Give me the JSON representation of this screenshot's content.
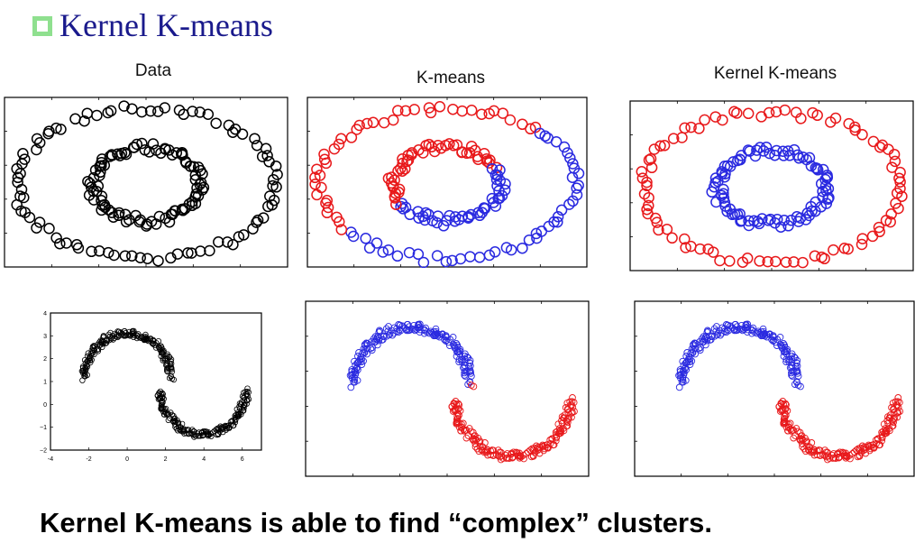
{
  "slide": {
    "title": "Kernel K-means",
    "caption": "Kernel K-means is able to find “complex” clusters."
  },
  "columns": {
    "data": "Data",
    "kmeans": "K-means",
    "kernel_kmeans": "Kernel K-means"
  },
  "colors": {
    "title_text": "#1a1a8c",
    "bullet": "#8fe08f",
    "unclustered": "#000000",
    "cluster_red": "#e8191b",
    "cluster_blue": "#2a2ae0"
  },
  "chart_data": [
    {
      "type": "scatter",
      "title": "Data",
      "dataset": "concentric-rings",
      "clusters": [
        {
          "shape": "outer ring",
          "radius": [
            1.0,
            1.0
          ],
          "color": "#000000"
        },
        {
          "shape": "inner ring",
          "radius": [
            0.42,
            0.48
          ],
          "color": "#000000"
        }
      ]
    },
    {
      "type": "scatter",
      "title": "K-means",
      "dataset": "concentric-rings",
      "clusters": [
        {
          "name": "cluster-1",
          "color": "#e8191b",
          "members": "left/upper half of both rings"
        },
        {
          "name": "cluster-2",
          "color": "#2a2ae0",
          "members": "right/lower half of both rings"
        }
      ]
    },
    {
      "type": "scatter",
      "title": "Kernel K-means",
      "dataset": "concentric-rings",
      "clusters": [
        {
          "name": "cluster-1",
          "color": "#e8191b",
          "members": "outer ring"
        },
        {
          "name": "cluster-2",
          "color": "#2a2ae0",
          "members": "inner ring"
        }
      ]
    },
    {
      "type": "scatter",
      "title": "",
      "dataset": "two-moons",
      "xlim": [
        -4,
        7
      ],
      "ylim": [
        -2,
        4
      ],
      "x_ticks": [
        "-4",
        "-2",
        "0",
        "2",
        "4",
        "6"
      ],
      "y_ticks": [
        "4",
        "3",
        "2",
        "1",
        "0",
        "−1",
        "−2"
      ],
      "clusters": [
        {
          "shape": "upper moon",
          "center": [
            0.8,
            1.2
          ],
          "radius": 2.0,
          "span_deg": [
            0,
            180
          ],
          "color": "#000000"
        },
        {
          "shape": "lower moon",
          "center": [
            3.3,
            0.6
          ],
          "radius": 2.0,
          "span_deg": [
            180,
            360
          ],
          "color": "#000000"
        }
      ]
    },
    {
      "type": "scatter",
      "title": "",
      "dataset": "two-moons",
      "clusters": [
        {
          "name": "cluster-1",
          "color": "#2a2ae0",
          "members": "upper moon + left part of lower moon"
        },
        {
          "name": "cluster-2",
          "color": "#e8191b",
          "members": "right end of upper moon + rest of lower moon"
        }
      ]
    },
    {
      "type": "scatter",
      "title": "",
      "dataset": "two-moons",
      "clusters": [
        {
          "name": "cluster-1",
          "color": "#2a2ae0",
          "members": "upper moon"
        },
        {
          "name": "cluster-2",
          "color": "#e8191b",
          "members": "lower moon"
        }
      ]
    }
  ]
}
